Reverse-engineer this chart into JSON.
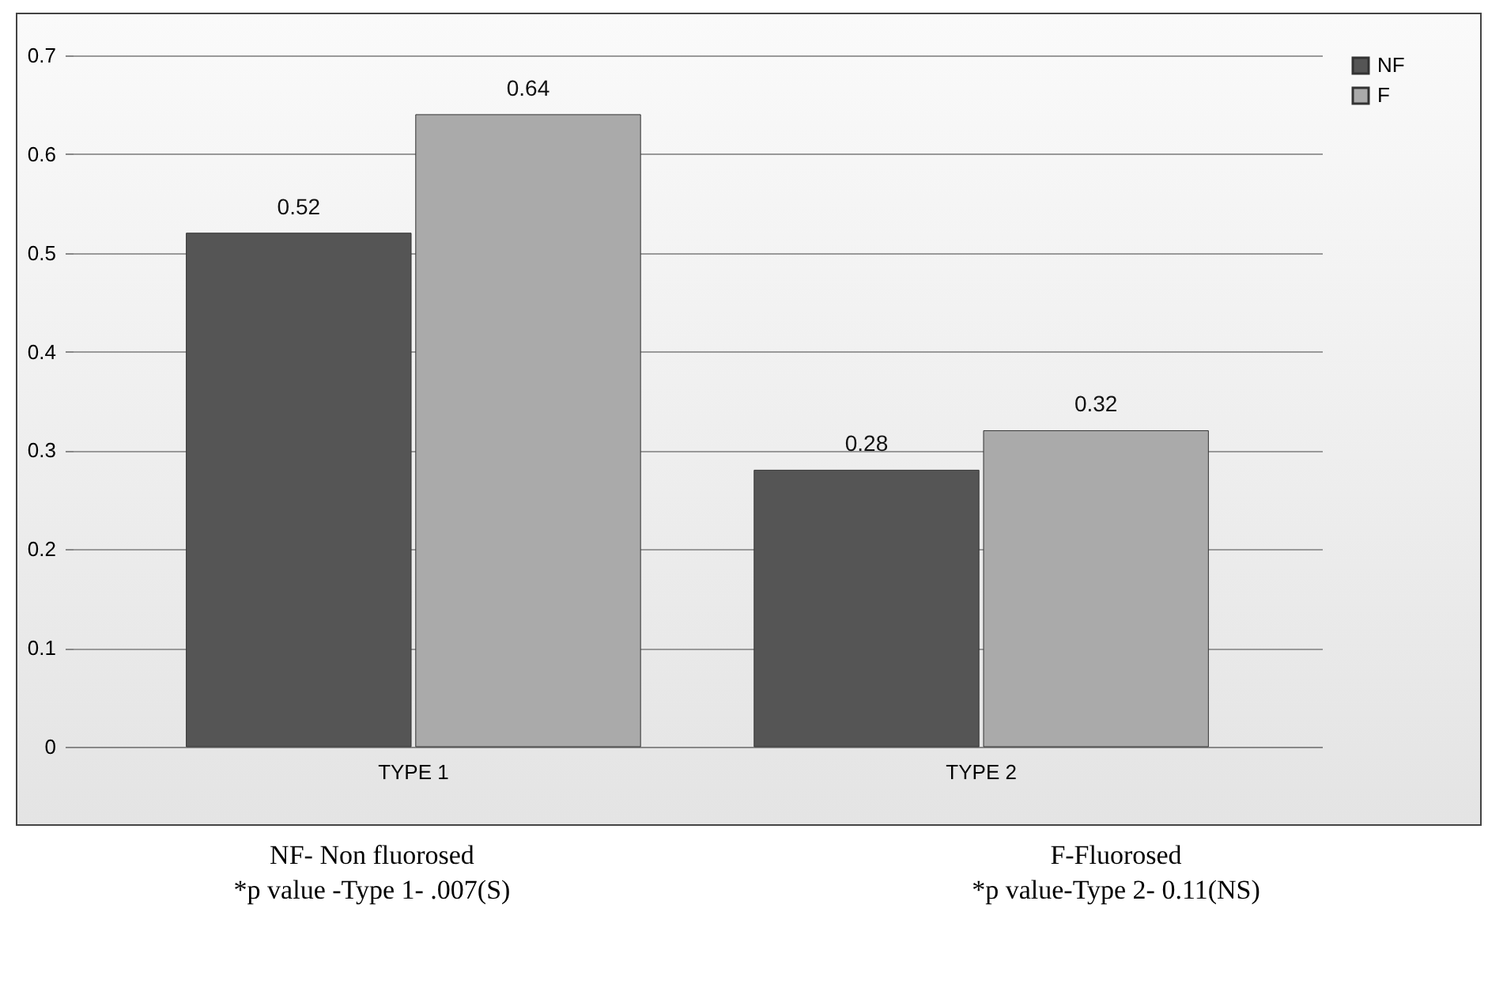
{
  "chart_data": {
    "type": "bar",
    "categories": [
      "TYPE  1",
      "TYPE 2"
    ],
    "series": [
      {
        "name": "NF",
        "color": "#555555",
        "values": [
          0.52,
          0.28
        ]
      },
      {
        "name": "F",
        "color": "#aaaaaa",
        "values": [
          0.64,
          0.32
        ]
      }
    ],
    "ylim": [
      0,
      0.7
    ],
    "yticks": [
      0,
      0.1,
      0.2,
      0.3,
      0.4,
      0.5,
      0.6,
      0.7
    ],
    "grid": "y",
    "legend": "right",
    "data_labels": true,
    "annotations": [
      "NF- Non fluorosed",
      "F-Fluorosed",
      "*p value -Type 1- .007(S)",
      "*p value-Type 2- 0.11(NS)"
    ]
  }
}
